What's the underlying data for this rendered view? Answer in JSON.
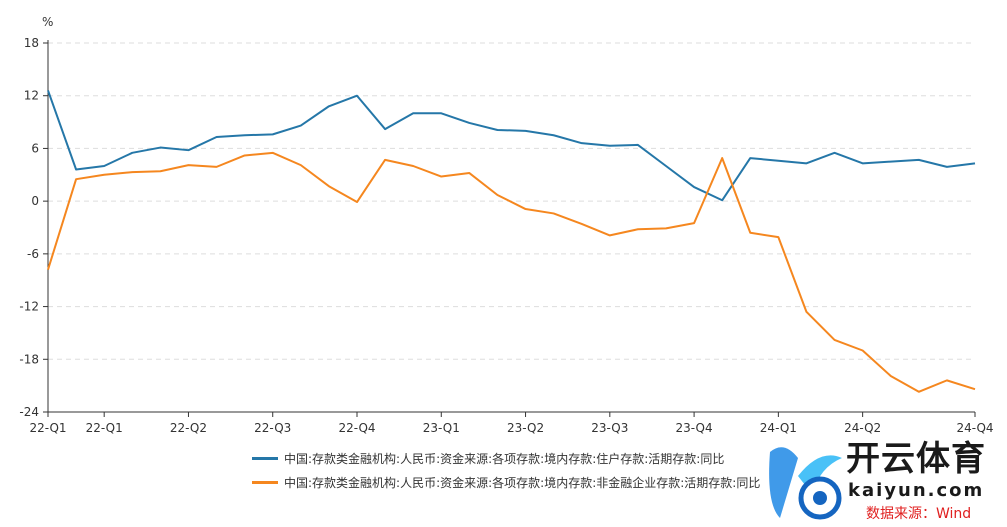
{
  "chart_data": {
    "type": "line",
    "ylabel": "%",
    "ylim": [
      -24,
      18
    ],
    "yticks": [
      18,
      12,
      6,
      0,
      -6,
      -12,
      -18,
      -24
    ],
    "grid": true,
    "legend_placement": "bottom",
    "x_tick_labels": [
      {
        "index": 0,
        "label": "22-Q1"
      },
      {
        "index": 2,
        "label": "22-Q1"
      },
      {
        "index": 5,
        "label": "22-Q2"
      },
      {
        "index": 8,
        "label": "22-Q3"
      },
      {
        "index": 11,
        "label": "22-Q4"
      },
      {
        "index": 14,
        "label": "23-Q1"
      },
      {
        "index": 17,
        "label": "23-Q2"
      },
      {
        "index": 20,
        "label": "23-Q3"
      },
      {
        "index": 23,
        "label": "23-Q4"
      },
      {
        "index": 26,
        "label": "24-Q1"
      },
      {
        "index": 29,
        "label": "24-Q2"
      },
      {
        "index": 33,
        "label": "24-Q4"
      }
    ],
    "series": [
      {
        "name": "中国:存款类金融机构:人民币:资金来源:各项存款:境内存款:住户存款:活期存款:同比",
        "color": "#2577a8",
        "values": [
          12.6,
          3.6,
          4.0,
          5.5,
          6.1,
          5.8,
          7.3,
          7.5,
          7.6,
          8.6,
          10.8,
          12.0,
          8.2,
          10.0,
          10.0,
          8.9,
          8.1,
          8.0,
          7.5,
          6.6,
          6.3,
          6.4,
          4.0,
          1.6,
          0.1,
          4.9,
          4.6,
          4.3,
          5.5,
          4.3,
          4.5,
          4.7,
          3.9,
          4.3
        ]
      },
      {
        "name": "中国:存款类金融机构:人民币:资金来源:各项存款:境内存款:非金融企业存款:活期存款:同比",
        "color": "#f5871f",
        "values": [
          -7.8,
          2.5,
          3.0,
          3.3,
          3.4,
          4.1,
          3.9,
          5.2,
          5.5,
          4.1,
          1.7,
          -0.1,
          4.7,
          4.0,
          2.8,
          3.2,
          0.7,
          -0.9,
          -1.4,
          -2.6,
          -3.9,
          -3.2,
          -3.1,
          -2.5,
          4.9,
          -3.6,
          -4.1,
          -12.6,
          -15.8,
          -17.0,
          -19.9,
          -21.7,
          -20.4,
          -21.4
        ]
      }
    ]
  },
  "watermark": {
    "cn": "开云体育",
    "en": "kaiyun.com"
  },
  "source": "数据来源：Wind"
}
